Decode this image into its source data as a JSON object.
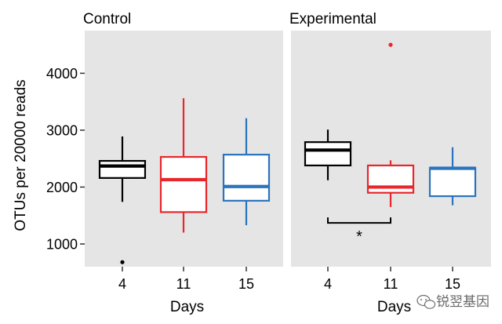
{
  "chart_data": {
    "type": "boxplot",
    "ylabel": "OTUs per 20000 reads",
    "xlabel": "Days",
    "ylim": [
      600,
      4750
    ],
    "yticks": [
      1000,
      2000,
      3000,
      4000
    ],
    "categories": [
      "4",
      "11",
      "15"
    ],
    "colors": {
      "4": "#000000",
      "11": "#e8262b",
      "15": "#2a74bd"
    },
    "panel_background": "#e5e5e5",
    "panels": [
      {
        "title": "Control",
        "boxes": [
          {
            "category": "4",
            "whisker_low": 1740,
            "q1": 2160,
            "median": 2370,
            "q3": 2460,
            "whisker_high": 2890,
            "outliers": [
              680
            ]
          },
          {
            "category": "11",
            "whisker_low": 1200,
            "q1": 1560,
            "median": 2130,
            "q3": 2530,
            "whisker_high": 3560,
            "outliers": []
          },
          {
            "category": "15",
            "whisker_low": 1330,
            "q1": 1760,
            "median": 2010,
            "q3": 2570,
            "whisker_high": 3210,
            "outliers": []
          }
        ]
      },
      {
        "title": "Experimental",
        "boxes": [
          {
            "category": "4",
            "whisker_low": 2120,
            "q1": 2380,
            "median": 2650,
            "q3": 2790,
            "whisker_high": 3010,
            "outliers": []
          },
          {
            "category": "11",
            "whisker_low": 1650,
            "q1": 1900,
            "median": 2000,
            "q3": 2380,
            "whisker_high": 2470,
            "outliers": [
              4500
            ]
          },
          {
            "category": "15",
            "whisker_low": 1680,
            "q1": 1840,
            "median": 2330,
            "q3": 2340,
            "whisker_high": 2700,
            "outliers": []
          }
        ],
        "significance": {
          "from": "4",
          "to": "11",
          "label": "*",
          "y": 1370
        }
      }
    ],
    "watermark": "锐翌基因"
  }
}
